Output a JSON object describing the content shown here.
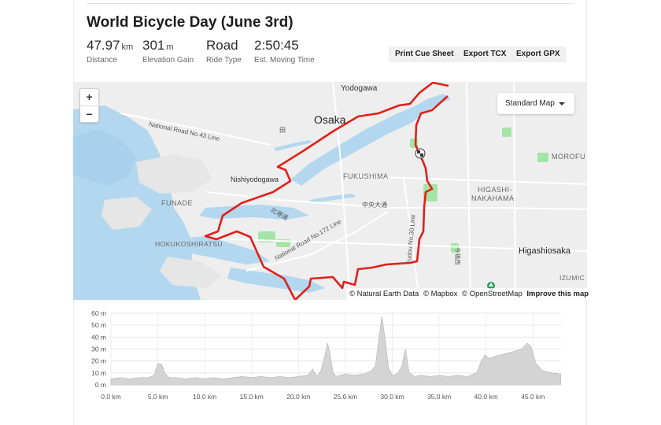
{
  "ride": {
    "title": "World Bicycle Day (June 3rd)",
    "stats": [
      {
        "value": "47.97",
        "unit": "km",
        "label": "Distance"
      },
      {
        "value": "301",
        "unit": "m",
        "label": "Elevation Gain"
      },
      {
        "value": "Road",
        "unit": "",
        "label": "Ride Type"
      },
      {
        "value": "2:50:45",
        "unit": "",
        "label": "Est. Moving Time"
      }
    ]
  },
  "actions": {
    "cue_sheet": "Print Cue Sheet",
    "export_tcx": "Export TCX",
    "export_gpx": "Export GPX"
  },
  "map": {
    "zoom_in": "+",
    "zoom_out": "−",
    "style_selector": "Standard Map",
    "labels": {
      "yodogawa": "Yodogawa",
      "osaka": "Osaka",
      "nr43": "National Road No.43 Line",
      "nishiyodogawa": "Nishiyodogawa",
      "fukushima": "FUKUSHIMA",
      "higashi_nakahama_1": "HIGASHI-",
      "higashi_nakahama_2": "NAKAHAMA",
      "morofu": "MOROFU",
      "funade": "FUNADE",
      "hokko": "北港通",
      "chuo": "中央大通",
      "hokukoshiratsu": "HOKUKOSHIRATSU",
      "nr172": "National Road No.172 Line",
      "fudou30": "Fudou No.30 Line",
      "imafuku": "今福西",
      "higashiosaka": "Higashiosaka",
      "izumic": "IZUMIC",
      "den": "田"
    },
    "attribution": {
      "natural_earth": "© Natural Earth Data",
      "mapbox": "© Mapbox",
      "osm": "© OpenStreetMap",
      "improve": "Improve this map"
    },
    "colors": {
      "route": "#e0201b",
      "water": "#b3d7ef",
      "park": "#a5e4a7",
      "land": "#eeeeee"
    }
  },
  "chart_data": {
    "type": "area",
    "title": "",
    "xlabel": "",
    "ylabel": "",
    "x_unit": "km",
    "y_unit": "m",
    "xlim": [
      0,
      48
    ],
    "ylim": [
      0,
      60
    ],
    "x_ticks": [
      "0.0 km",
      "5.0 km",
      "10.0 km",
      "15.0 km",
      "20.0 km",
      "25.0 km",
      "30.0 km",
      "35.0 km",
      "40.0 km",
      "45.0 km"
    ],
    "x_tick_values": [
      0,
      5,
      10,
      15,
      20,
      25,
      30,
      35,
      40,
      45
    ],
    "y_ticks": [
      "60 m",
      "50 m",
      "40 m",
      "30 m",
      "20 m",
      "10 m",
      "0 m"
    ],
    "y_tick_values": [
      60,
      50,
      40,
      30,
      20,
      10,
      0
    ],
    "grid": true,
    "series": [
      {
        "x": [
          0,
          1,
          2,
          3,
          4,
          4.6,
          5.0,
          5.4,
          5.8,
          6.2,
          7,
          8,
          9,
          10,
          11,
          12,
          13,
          14,
          15,
          16,
          17,
          18,
          19,
          20,
          21,
          21.5,
          22,
          22.4,
          22.8,
          23.1,
          23.4,
          23.7,
          24.0,
          24.4,
          25,
          26,
          27,
          27.8,
          28.2,
          28.6,
          28.9,
          29.2,
          29.6,
          30,
          30.5,
          31,
          31.4,
          31.8,
          32.4,
          33,
          34,
          35,
          36,
          37,
          38,
          39,
          39.5,
          39.9,
          40.3,
          41,
          42,
          43,
          43.8,
          44.4,
          44.8,
          45.3,
          46,
          47,
          47.97
        ],
        "values": [
          5,
          6,
          5,
          6,
          6,
          8,
          18,
          17,
          9,
          6,
          6,
          5,
          6,
          5,
          6,
          5,
          6,
          7,
          6,
          7,
          6,
          7,
          6,
          7,
          8,
          13,
          7,
          12,
          24,
          35,
          24,
          10,
          7,
          8,
          9,
          8,
          9,
          12,
          16,
          40,
          57,
          40,
          14,
          8,
          9,
          15,
          30,
          10,
          7,
          8,
          7,
          8,
          7,
          8,
          7,
          10,
          20,
          25,
          22,
          24,
          26,
          28,
          30,
          35,
          32,
          18,
          12,
          10,
          9
        ]
      }
    ]
  }
}
